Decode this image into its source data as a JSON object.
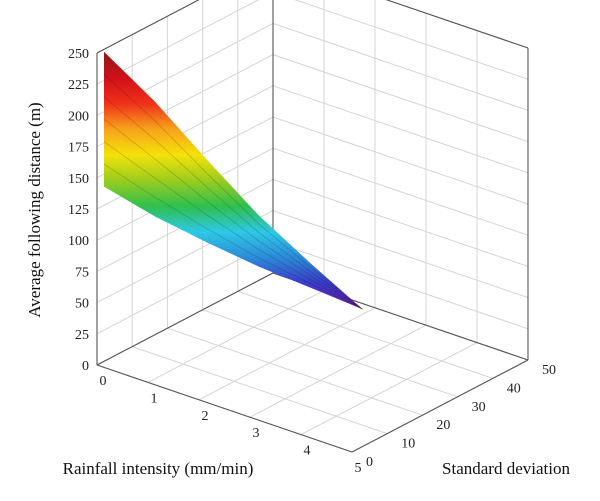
{
  "chart_data": {
    "type": "surface3d",
    "title": "",
    "axes": {
      "x": {
        "label": "Rainfall intensity (mm/min)",
        "ticks": [
          "0",
          "1",
          "2",
          "3",
          "4",
          "5"
        ],
        "range": [
          0,
          5
        ]
      },
      "y": {
        "label": "Standard deviation",
        "ticks": [
          "0",
          "10",
          "20",
          "30",
          "40",
          "50"
        ],
        "range": [
          0,
          50
        ]
      },
      "z": {
        "label": "Average following distance (m)",
        "ticks": [
          "0",
          "25",
          "50",
          "75",
          "100",
          "125",
          "150",
          "175",
          "200",
          "225",
          "250"
        ],
        "range": [
          0,
          250
        ]
      }
    },
    "grid": true,
    "colormap": [
      "#6a1fa0",
      "#3a3aca",
      "#2c8ad8",
      "#2ec8e6",
      "#2fbf4e",
      "#9acd1e",
      "#f4e20a",
      "#f7a21b",
      "#f0301a",
      "#d0101a",
      "#8a1a1a"
    ],
    "surface": {
      "top_edge": [
        {
          "x": 0,
          "y": 0,
          "z": 248
        },
        {
          "x": 1,
          "y": 0,
          "z": 222
        },
        {
          "x": 2,
          "y": 0,
          "z": 188
        },
        {
          "x": 3,
          "y": 0,
          "z": 158
        },
        {
          "x": 4,
          "y": 0,
          "z": 132
        },
        {
          "x": 5,
          "y": 0,
          "z": 110
        }
      ],
      "bottom_edge": [
        {
          "x": 0,
          "y": 0,
          "z": 140
        },
        {
          "x": 1,
          "y": 0,
          "z": 130
        },
        {
          "x": 2,
          "y": 0,
          "z": 122
        },
        {
          "x": 3,
          "y": 0,
          "z": 117
        },
        {
          "x": 4,
          "y": 0,
          "z": 113
        },
        {
          "x": 5,
          "y": 0,
          "z": 110
        }
      ]
    }
  }
}
